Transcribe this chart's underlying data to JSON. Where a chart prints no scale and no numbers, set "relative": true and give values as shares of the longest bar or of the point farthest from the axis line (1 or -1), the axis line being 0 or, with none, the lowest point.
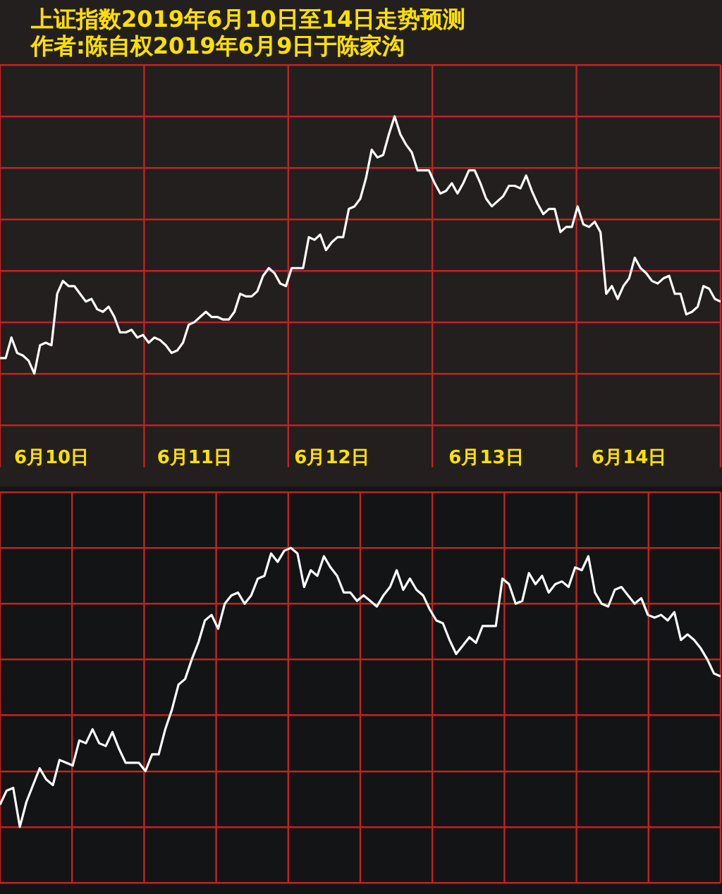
{
  "chart_data": [
    {
      "type": "line",
      "title": "上证指数2019年6月10日至14日走势预测",
      "subtitle": "作者:陈自权2019年6月9日于陈家沟",
      "relative": true,
      "grid": true,
      "legend": false,
      "marker": "none",
      "line_style": "solid",
      "tick_labels": "x",
      "categories": [
        null,
        null,
        null,
        null,
        null,
        null,
        null,
        null,
        null,
        "6月10日",
        null,
        null,
        null,
        null,
        null,
        null,
        null,
        null,
        null,
        null,
        null,
        null,
        null,
        null,
        null,
        null,
        null,
        null,
        null,
        null,
        null,
        null,
        null,
        null,
        "6月11日",
        null,
        null,
        null,
        null,
        null,
        null,
        null,
        null,
        null,
        null,
        null,
        null,
        null,
        null,
        null,
        null,
        null,
        null,
        null,
        null,
        null,
        null,
        null,
        "6月12日",
        null,
        null,
        null,
        null,
        null,
        null,
        null,
        null,
        null,
        null,
        null,
        null,
        null,
        null,
        null,
        null,
        null,
        null,
        null,
        null,
        null,
        null,
        null,
        null,
        null,
        null,
        "6月13日",
        null,
        null,
        null,
        null,
        null,
        null,
        null,
        null,
        null,
        null,
        null,
        null,
        null,
        null,
        null,
        null,
        null,
        null,
        null,
        null,
        null,
        null,
        null,
        null,
        "6月14日",
        null,
        null,
        null,
        null,
        null,
        null,
        null,
        null,
        null,
        null,
        null,
        null,
        null,
        null,
        null,
        null
      ],
      "series": [
        {
          "color": "#ffffff",
          "values": [
            0.06,
            0.06,
            0.14,
            0.08,
            0.07,
            0.05,
            0,
            0.11,
            0.12,
            0.11,
            0.31,
            0.36,
            0.34,
            0.34,
            0.31,
            0.28,
            0.29,
            0.25,
            0.24,
            0.26,
            0.22,
            0.16,
            0.16,
            0.17,
            0.14,
            0.15,
            0.12,
            0.14,
            0.13,
            0.11,
            0.08,
            0.09,
            0.12,
            0.19,
            0.2,
            0.22,
            0.24,
            0.22,
            0.22,
            0.21,
            0.21,
            0.24,
            0.31,
            0.3,
            0.3,
            0.32,
            0.38,
            0.41,
            0.39,
            0.35,
            0.34,
            0.41,
            0.41,
            0.41,
            0.53,
            0.52,
            0.54,
            0.48,
            0.51,
            0.53,
            0.53,
            0.64,
            0.65,
            0.68,
            0.76,
            0.87,
            0.84,
            0.85,
            0.93,
            1,
            0.93,
            0.89,
            0.86,
            0.79,
            0.79,
            0.79,
            0.74,
            0.7,
            0.71,
            0.74,
            0.7,
            0.74,
            0.79,
            0.79,
            0.74,
            0.68,
            0.65,
            0.67,
            0.69,
            0.73,
            0.73,
            0.72,
            0.77,
            0.71,
            0.66,
            0.62,
            0.64,
            0.64,
            0.55,
            0.57,
            0.57,
            0.65,
            0.58,
            0.57,
            0.59,
            0.55,
            0.31,
            0.34,
            0.29,
            0.34,
            0.37,
            0.45,
            0.41,
            0.39,
            0.36,
            0.35,
            0.37,
            0.38,
            0.31,
            0.31,
            0.23,
            0.24,
            0.26,
            0.34,
            0.33,
            0.29,
            0.28
          ]
        }
      ]
    },
    {
      "type": "line",
      "relative": true,
      "grid": true,
      "legend": false,
      "marker": "none",
      "line_style": "solid",
      "tick_labels": false,
      "categories": [
        null,
        null,
        null,
        null,
        null,
        null,
        null,
        null,
        null,
        null,
        null,
        null,
        null,
        null,
        null,
        null,
        null,
        null,
        null,
        null,
        null,
        null,
        null,
        null,
        null,
        null,
        null,
        null,
        null,
        null,
        null,
        null,
        null,
        null,
        null,
        null,
        null,
        null,
        null,
        null,
        null,
        null,
        null,
        null,
        null,
        null,
        null,
        null,
        null,
        null,
        null,
        null,
        null,
        null,
        null,
        null,
        null,
        null,
        null,
        null,
        null,
        null,
        null,
        null,
        null,
        null,
        null,
        null,
        null,
        null,
        null,
        null,
        null,
        null,
        null,
        null,
        null,
        null,
        null,
        null,
        null,
        null,
        null,
        null,
        null,
        null,
        null,
        null,
        null,
        null,
        null,
        null,
        null,
        null,
        null,
        null,
        null,
        null,
        null,
        null,
        null,
        null,
        null,
        null,
        null,
        null,
        null,
        null,
        null,
        null
      ],
      "series": [
        {
          "color": "#ffffff",
          "values": [
            0.08,
            0.13,
            0.14,
            0,
            0.09,
            0.15,
            0.21,
            0.17,
            0.15,
            0.24,
            0.23,
            0.22,
            0.31,
            0.3,
            0.35,
            0.3,
            0.29,
            0.34,
            0.28,
            0.23,
            0.23,
            0.23,
            0.2,
            0.26,
            0.26,
            0.35,
            0.42,
            0.51,
            0.53,
            0.6,
            0.66,
            0.74,
            0.76,
            0.71,
            0.8,
            0.83,
            0.84,
            0.8,
            0.83,
            0.89,
            0.9,
            0.98,
            0.95,
            0.99,
            1,
            0.98,
            0.86,
            0.92,
            0.9,
            0.97,
            0.93,
            0.9,
            0.84,
            0.84,
            0.81,
            0.83,
            0.81,
            0.79,
            0.83,
            0.86,
            0.92,
            0.85,
            0.89,
            0.85,
            0.83,
            0.78,
            0.74,
            0.73,
            0.67,
            0.62,
            0.65,
            0.68,
            0.66,
            0.72,
            0.72,
            0.72,
            0.89,
            0.87,
            0.8,
            0.81,
            0.91,
            0.87,
            0.9,
            0.84,
            0.87,
            0.88,
            0.86,
            0.93,
            0.92,
            0.97,
            0.84,
            0.8,
            0.79,
            0.85,
            0.86,
            0.83,
            0.8,
            0.82,
            0.76,
            0.75,
            0.76,
            0.74,
            0.77,
            0.67,
            0.69,
            0.67,
            0.64,
            0.6,
            0.55,
            0.54
          ]
        }
      ]
    }
  ]
}
